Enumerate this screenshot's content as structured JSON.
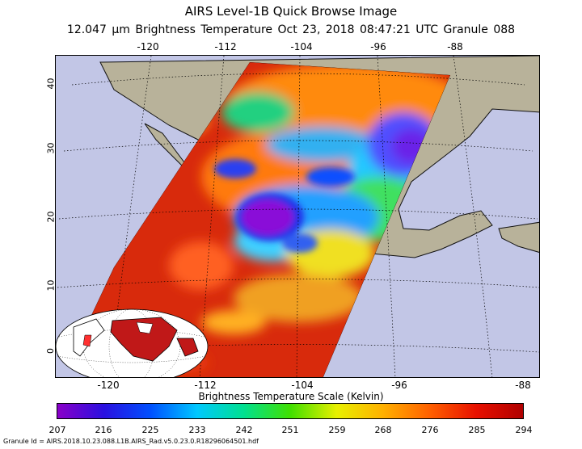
{
  "header": {
    "title": "AIRS Level-1B Quick Browse Image",
    "subtitle": "12.047 μm Brightness Temperature   Oct 23, 2018 08:47:21 UTC   Granule 088"
  },
  "map": {
    "lon_ticks": [
      "-120",
      "-112",
      "-104",
      "-96",
      "-88"
    ],
    "lat_ticks": [
      "40",
      "30",
      "20",
      "10",
      "0"
    ],
    "colors": {
      "ocean": "#c2c6e6",
      "land": "#b8b29a",
      "coast": "#111111",
      "grid": "#000000"
    }
  },
  "colorbar": {
    "label": "Brightness Temperature Scale (Kelvin)",
    "ticks": [
      "207",
      "216",
      "225",
      "233",
      "242",
      "251",
      "259",
      "268",
      "276",
      "285",
      "294"
    ],
    "range": [
      207,
      294
    ],
    "gradient": [
      "#8a00c8",
      "#2a10e0",
      "#0050ff",
      "#00c8ff",
      "#00e090",
      "#40e000",
      "#e8f000",
      "#ffb000",
      "#ff6000",
      "#e81000",
      "#b00000"
    ]
  },
  "footer": {
    "granule_id": "Granule Id = AIRS.2018.10.23.088.L1B.AIRS_Rad.v5.0.23.0.R18296064501.hdf"
  }
}
